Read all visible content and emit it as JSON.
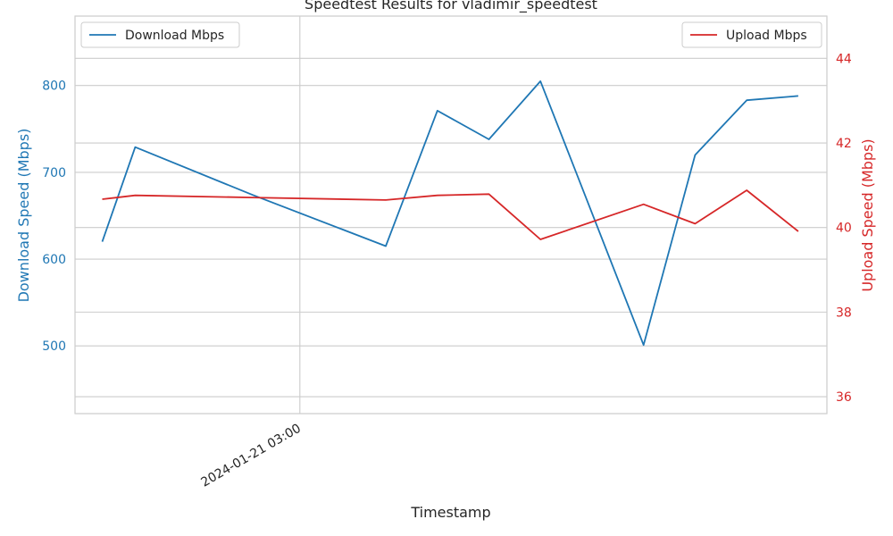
{
  "chart_data": {
    "type": "line",
    "title": "Speedtest Results for vladimir_speedtest",
    "xlabel": "Timestamp",
    "ylabel_left": "Download Speed (Mbps)",
    "ylabel_right": "Upload Speed (Mbps)",
    "x": [
      "2024-01-21 00:42",
      "2024-01-21 01:05",
      "2024-01-21 02:27",
      "2024-01-21 04:00",
      "2024-01-21 04:36",
      "2024-01-21 05:12",
      "2024-01-21 05:48",
      "2024-01-21 07:00",
      "2024-01-21 07:36",
      "2024-01-21 08:12",
      "2024-01-21 08:48"
    ],
    "x_tick_labels": [
      "2024-01-21 03:00"
    ],
    "x_tick_values": [
      "2024-01-21 03:00"
    ],
    "xlim": [
      "2024-01-21 00:23",
      "2024-01-21 09:08"
    ],
    "series": [
      {
        "name": "Download Mbps",
        "axis": "left",
        "color": "#1f77b4",
        "values": [
          620,
          729,
          674,
          615,
          771,
          738,
          805,
          501,
          720,
          783,
          788
        ]
      },
      {
        "name": "Upload Mbps",
        "axis": "right",
        "color": "#d62728",
        "values": [
          40.67,
          40.76,
          40.71,
          40.65,
          40.76,
          40.79,
          39.72,
          40.55,
          40.09,
          40.88,
          39.91
        ]
      }
    ],
    "ylim_left": [
      422,
      880
    ],
    "yticks_left": [
      500,
      600,
      700,
      800
    ],
    "ylim_right": [
      35.6,
      45.0
    ],
    "yticks_right": [
      36,
      38,
      40,
      42,
      44
    ],
    "grid": true,
    "legend_left": "upper-left",
    "legend_right": "upper-right",
    "left_axis_color": "#1f77b4",
    "right_axis_color": "#d62728"
  }
}
